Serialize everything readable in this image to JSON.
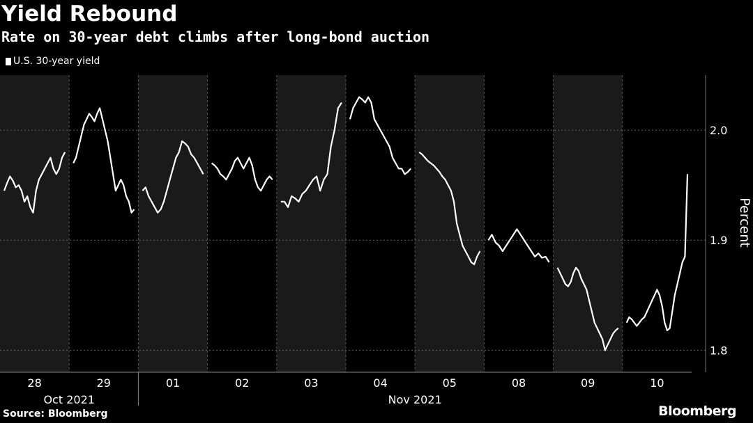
{
  "header": {
    "title": "Yield Rebound",
    "subtitle": "Rate on 30-year debt climbs after long-bond auction",
    "legend_label": "U.S. 30-year yield"
  },
  "footer": {
    "source": "Source: Bloomberg",
    "brand": "Bloomberg"
  },
  "chart_data": {
    "type": "line",
    "title": "Yield Rebound",
    "subtitle": "Rate on 30-year debt climbs after long-bond auction",
    "ylabel": "Percent",
    "ylim": [
      1.78,
      2.05
    ],
    "yticks": [
      1.8,
      1.9,
      2.0
    ],
    "ytick_labels": [
      "1.8",
      "1.9",
      "2.0"
    ],
    "grid": "horizontal dashed",
    "legend_position": "top-left",
    "series_color": "#ffffff",
    "shading": "alternate trading days shaded",
    "categories": [
      "28",
      "29",
      "01",
      "02",
      "03",
      "04",
      "05",
      "08",
      "09",
      "10"
    ],
    "month_labels": [
      {
        "label": "Oct 2021",
        "span": [
          "28",
          "29"
        ]
      },
      {
        "label": "Nov 2021",
        "span": [
          "01",
          "10"
        ]
      }
    ],
    "series": [
      {
        "name": "U.S. 30-year yield",
        "segments": [
          {
            "day": "28",
            "values": [
              1.945,
              1.952,
              1.958,
              1.954,
              1.948,
              1.95,
              1.945,
              1.935,
              1.94,
              1.93,
              1.925,
              1.945,
              1.955,
              1.96,
              1.965,
              1.97,
              1.975,
              1.965,
              1.96,
              1.965,
              1.975,
              1.98
            ]
          },
          {
            "day": "29",
            "values": [
              1.97,
              1.975,
              1.985,
              1.995,
              2.005,
              2.01,
              2.015,
              2.012,
              2.008,
              2.015,
              2.02,
              2.01,
              2.0,
              1.99,
              1.975,
              1.96,
              1.945,
              1.95,
              1.955,
              1.95,
              1.94,
              1.935,
              1.925,
              1.928
            ]
          },
          {
            "day": "01",
            "values": [
              1.945,
              1.948,
              1.94,
              1.935,
              1.93,
              1.925,
              1.928,
              1.935,
              1.945,
              1.955,
              1.965,
              1.975,
              1.98,
              1.99,
              1.988,
              1.985,
              1.978,
              1.975,
              1.97,
              1.965,
              1.96
            ]
          },
          {
            "day": "02",
            "values": [
              1.97,
              1.968,
              1.965,
              1.96,
              1.958,
              1.955,
              1.96,
              1.965,
              1.972,
              1.975,
              1.97,
              1.965,
              1.97,
              1.975,
              1.968,
              1.955,
              1.948,
              1.945,
              1.95,
              1.955,
              1.958,
              1.955
            ]
          },
          {
            "day": "03",
            "values": [
              1.935,
              1.935,
              1.93,
              1.94,
              1.938,
              1.935,
              1.942,
              1.945,
              1.95,
              1.955,
              1.958,
              1.945,
              1.955,
              1.96,
              1.985,
              2.0,
              2.02,
              2.025
            ]
          },
          {
            "day": "04",
            "values": [
              2.01,
              2.02,
              2.025,
              2.03,
              2.028,
              2.025,
              2.03,
              2.025,
              2.01,
              2.005,
              2.0,
              1.995,
              1.99,
              1.985,
              1.975,
              1.97,
              1.965,
              1.965,
              1.96,
              1.962,
              1.965
            ]
          },
          {
            "day": "05",
            "values": [
              1.98,
              1.978,
              1.975,
              1.972,
              1.97,
              1.968,
              1.965,
              1.962,
              1.958,
              1.955,
              1.95,
              1.945,
              1.935,
              1.915,
              1.905,
              1.895,
              1.89,
              1.885,
              1.88,
              1.878,
              1.885,
              1.89
            ]
          },
          {
            "day": "08",
            "values": [
              1.9,
              1.905,
              1.898,
              1.895,
              1.89,
              1.895,
              1.9,
              1.905,
              1.91,
              1.905,
              1.9,
              1.895,
              1.89,
              1.885,
              1.888,
              1.884,
              1.885,
              1.88
            ]
          },
          {
            "day": "09",
            "values": [
              1.875,
              1.87,
              1.865,
              1.86,
              1.858,
              1.862,
              1.87,
              1.875,
              1.872,
              1.865,
              1.86,
              1.855,
              1.845,
              1.835,
              1.825,
              1.82,
              1.815,
              1.81,
              1.8,
              1.805,
              1.81,
              1.815,
              1.818,
              1.82
            ]
          },
          {
            "day": "10",
            "values": [
              1.825,
              1.83,
              1.828,
              1.825,
              1.822,
              1.825,
              1.828,
              1.83,
              1.835,
              1.84,
              1.845,
              1.85,
              1.855,
              1.85,
              1.84,
              1.825,
              1.818,
              1.82,
              1.835,
              1.85,
              1.86,
              1.87,
              1.88,
              1.885,
              1.96
            ]
          }
        ]
      }
    ]
  }
}
